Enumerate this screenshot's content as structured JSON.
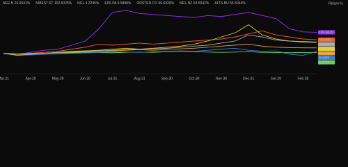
{
  "chart_data": {
    "type": "line",
    "y_axis_label": "Return %",
    "categories": [
      "Mar-21",
      null,
      "Apr-20",
      null,
      "May-29",
      null,
      "Jun-30",
      null,
      "Jul-31",
      null,
      "Aug-31",
      null,
      "Sep-30",
      null,
      "Oct-30",
      null,
      "Nov-30",
      null,
      "Dec-31",
      null,
      "Jan-29",
      null,
      "Feb-28",
      null
    ],
    "ylim": [
      -100,
      220
    ],
    "series": [
      {
        "name": "NEE.N",
        "legend_label": "26.6541%",
        "color": "#f0a030",
        "values": [
          0,
          -5,
          -3,
          0,
          3,
          5,
          8,
          10,
          12,
          15,
          18,
          15,
          20,
          22,
          25,
          30,
          35,
          40,
          45,
          35,
          30,
          28,
          27,
          26.6541
        ],
        "value_labels": [
          null,
          null,
          null,
          null,
          null,
          null,
          null,
          null,
          null,
          null,
          null,
          null,
          null,
          null,
          null,
          null,
          null,
          null,
          null,
          null,
          null,
          null,
          null,
          "26.6541"
        ]
      },
      {
        "name": "NIBEST.ST",
        "legend_label": "102.6025%",
        "color": "#9b30ff",
        "values": [
          0,
          -5,
          5,
          15,
          20,
          40,
          60,
          120,
          200,
          210,
          195,
          190,
          185,
          180,
          175,
          185,
          180,
          190,
          200,
          185,
          170,
          120,
          105,
          102.6025
        ],
        "value_labels": [
          null,
          null,
          null,
          null,
          null,
          null,
          null,
          null,
          null,
          null,
          null,
          null,
          null,
          null,
          null,
          null,
          null,
          null,
          null,
          null,
          null,
          null,
          null,
          "102.6025"
        ]
      },
      {
        "name": "NGL",
        "legend_label": "4.2245%",
        "color": "#5fd35f",
        "values": [
          0,
          -3,
          -2,
          0,
          2,
          3,
          5,
          4,
          3,
          5,
          6,
          5,
          8,
          10,
          8,
          6,
          5,
          6,
          8,
          5,
          4,
          3,
          4,
          4.2245
        ],
        "value_labels": [
          null,
          null,
          null,
          null,
          null,
          null,
          null,
          null,
          null,
          null,
          null,
          null,
          null,
          null,
          null,
          null,
          null,
          null,
          null,
          null,
          null,
          null,
          null,
          "4.2245"
        ]
      },
      {
        "name": "EDF.PA",
        "legend_label": "9.5898%",
        "color": "#3a7fd5",
        "values": [
          0,
          -10,
          -8,
          -5,
          -3,
          0,
          2,
          5,
          8,
          6,
          5,
          8,
          10,
          12,
          10,
          15,
          20,
          25,
          15,
          10,
          12,
          -5,
          -10,
          9.5898
        ],
        "value_labels": [
          null,
          null,
          null,
          null,
          null,
          null,
          null,
          null,
          null,
          null,
          null,
          null,
          null,
          null,
          null,
          null,
          null,
          null,
          null,
          null,
          null,
          null,
          null,
          "9.5898"
        ]
      },
      {
        "name": "ORSTED.CO",
        "legend_label": "66.6920%",
        "color": "#ff5a1f",
        "values": [
          0,
          -3,
          0,
          5,
          10,
          20,
          30,
          45,
          40,
          45,
          50,
          45,
          50,
          55,
          60,
          65,
          70,
          80,
          95,
          110,
          90,
          80,
          70,
          66.692
        ],
        "value_labels": [
          null,
          null,
          null,
          null,
          null,
          null,
          null,
          null,
          null,
          null,
          null,
          null,
          null,
          null,
          null,
          null,
          null,
          null,
          null,
          null,
          null,
          null,
          null,
          "66.6920"
        ]
      },
      {
        "name": "MEL.NZ",
        "legend_label": "53.5042%",
        "color": "#f0d020",
        "values": [
          0,
          -5,
          -2,
          0,
          5,
          10,
          12,
          15,
          20,
          25,
          20,
          25,
          30,
          35,
          45,
          60,
          80,
          100,
          140,
          90,
          70,
          60,
          55,
          53.5042
        ],
        "value_labels": [
          null,
          null,
          null,
          null,
          null,
          null,
          null,
          null,
          null,
          null,
          null,
          null,
          null,
          null,
          null,
          null,
          null,
          null,
          null,
          null,
          null,
          null,
          null,
          "53.5042"
        ]
      },
      {
        "name": "ALTS.BU",
        "legend_label": "55.5044%",
        "color": "#aaaaaa",
        "values": [
          0,
          -10,
          -5,
          0,
          5,
          8,
          10,
          12,
          15,
          18,
          20,
          22,
          25,
          30,
          35,
          40,
          50,
          60,
          90,
          80,
          65,
          60,
          58,
          55.5044
        ],
        "value_labels": [
          null,
          null,
          null,
          null,
          null,
          null,
          null,
          null,
          null,
          null,
          null,
          null,
          null,
          null,
          null,
          null,
          null,
          null,
          null,
          null,
          null,
          null,
          null,
          "55.5044"
        ]
      }
    ]
  }
}
